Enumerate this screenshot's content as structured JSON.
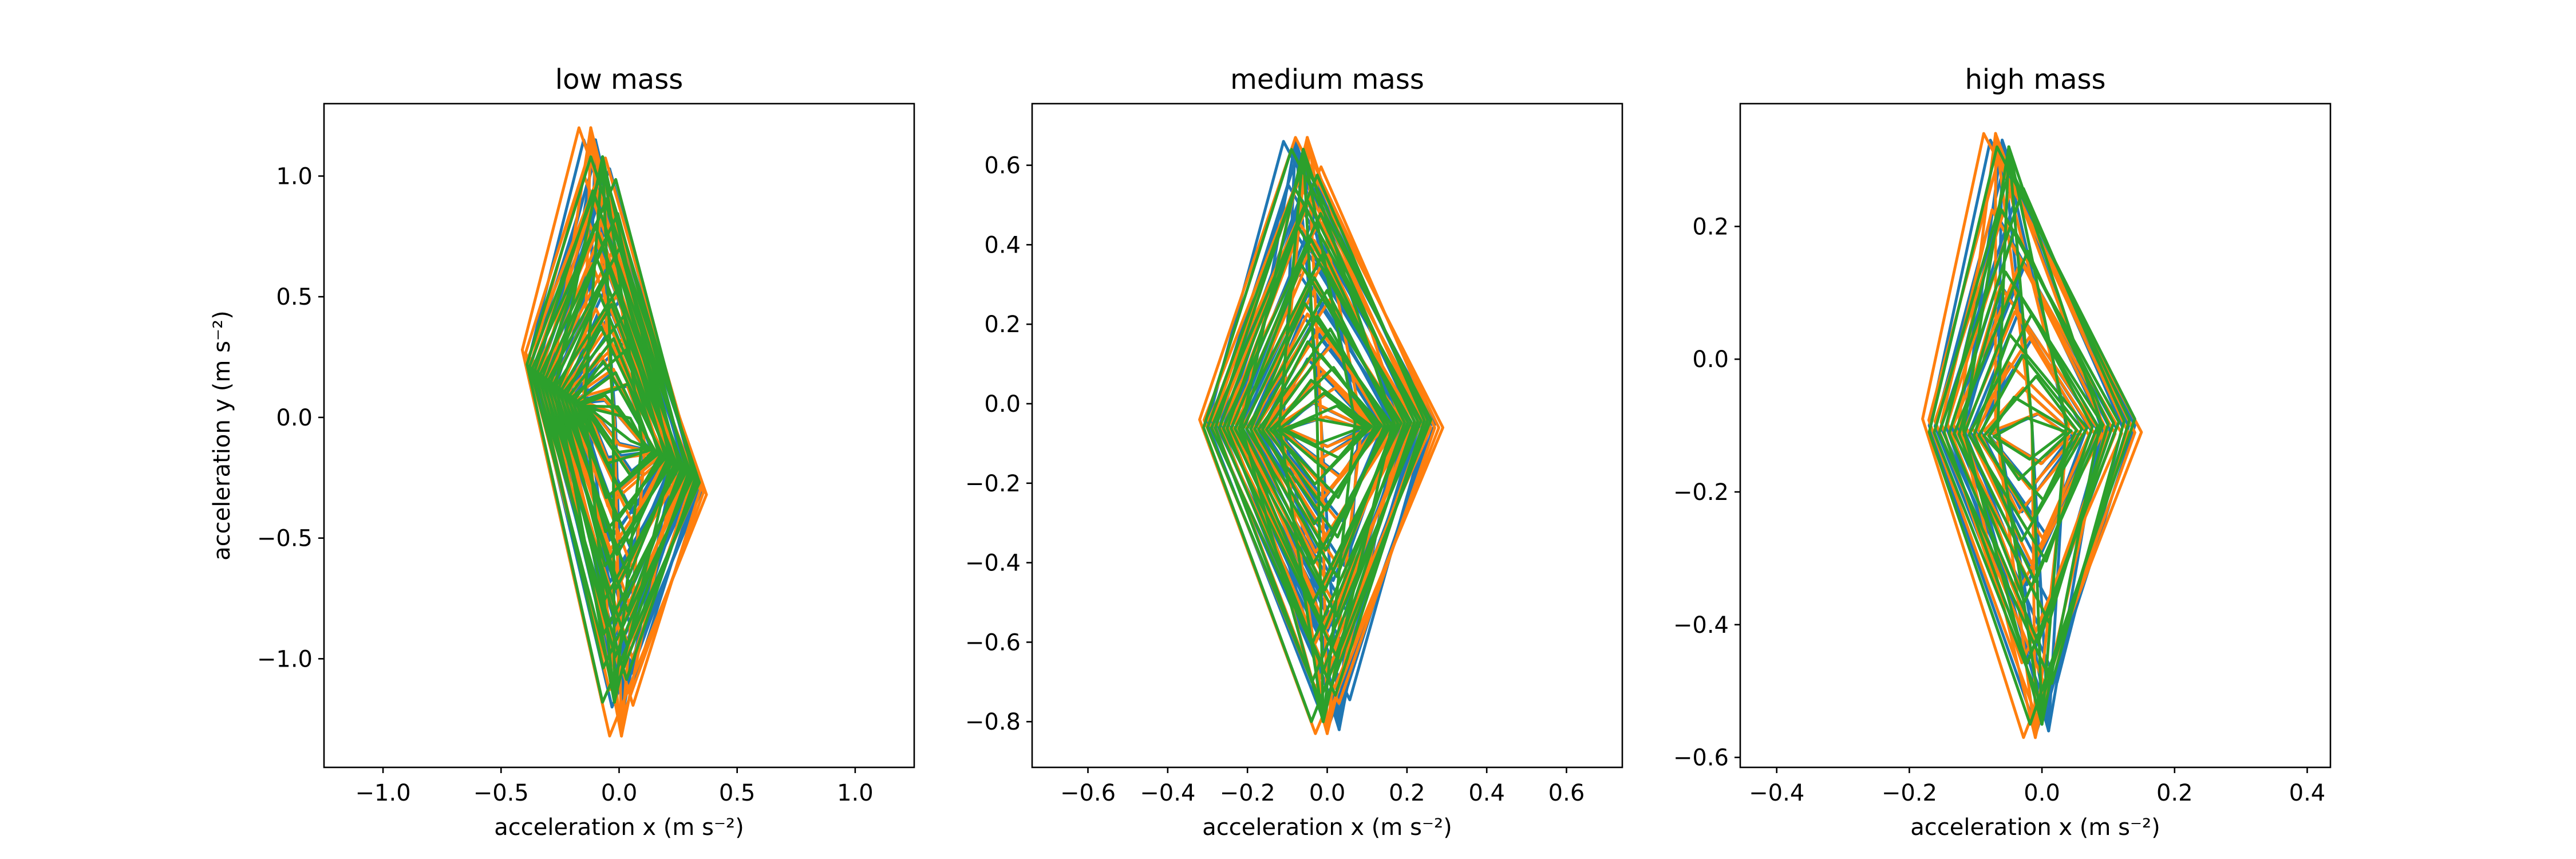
{
  "chart_data": [
    {
      "type": "line",
      "title": "low mass",
      "xlabel": "acceleration x (m s⁻²)",
      "ylabel": "acceleration y (m s⁻²)",
      "xlim": [
        -1.25,
        1.25
      ],
      "ylim": [
        -1.45,
        1.3
      ],
      "xticks": [
        -1.0,
        -0.5,
        0.0,
        0.5,
        1.0
      ],
      "xtick_labels": [
        "−1.0",
        "−0.5",
        "0.0",
        "0.5",
        "1.0"
      ],
      "yticks": [
        -1.0,
        -0.5,
        0.0,
        0.5,
        1.0
      ],
      "ytick_labels": [
        "−1.0",
        "−0.5",
        "0.0",
        "0.5",
        "1.0"
      ],
      "grid": false,
      "series": [
        {
          "color": "#1f77b4",
          "top": [
            -0.1,
            1.15
          ],
          "bottom": [
            0.02,
            -1.2
          ],
          "left": [
            -0.38,
            0.25
          ],
          "right": [
            0.35,
            -0.3
          ],
          "center": [
            0.0,
            -0.05
          ],
          "loops": 20
        },
        {
          "color": "#ff7f0e",
          "top": [
            -0.12,
            1.2
          ],
          "bottom": [
            0.01,
            -1.32
          ],
          "left": [
            -0.41,
            0.28
          ],
          "right": [
            0.37,
            -0.32
          ],
          "center": [
            0.0,
            -0.05
          ],
          "loops": 20
        },
        {
          "color": "#2ca02c",
          "top": [
            -0.07,
            1.08
          ],
          "bottom": [
            -0.02,
            -1.18
          ],
          "left": [
            -0.39,
            0.22
          ],
          "right": [
            0.34,
            -0.27
          ],
          "center": [
            0.0,
            -0.05
          ],
          "loops": 24
        }
      ]
    },
    {
      "type": "line",
      "title": "medium mass",
      "xlabel": "acceleration x (m s⁻²)",
      "ylabel": "",
      "xlim": [
        -0.74,
        0.74
      ],
      "ylim": [
        -0.915,
        0.755
      ],
      "xticks": [
        -0.6,
        -0.4,
        -0.2,
        0.0,
        0.2,
        0.4,
        0.6
      ],
      "xtick_labels": [
        "−0.6",
        "−0.4",
        "−0.2",
        "0.0",
        "0.2",
        "0.4",
        "0.6"
      ],
      "yticks": [
        -0.8,
        -0.6,
        -0.4,
        -0.2,
        0.0,
        0.2,
        0.4,
        0.6
      ],
      "ytick_labels": [
        "−0.8",
        "−0.6",
        "−0.4",
        "−0.2",
        "0.0",
        "0.2",
        "0.4",
        "0.6"
      ],
      "grid": false,
      "series": [
        {
          "color": "#1f77b4",
          "top": [
            -0.08,
            0.66
          ],
          "bottom": [
            0.03,
            -0.82
          ],
          "left": [
            -0.3,
            -0.05
          ],
          "right": [
            0.27,
            -0.05
          ],
          "center": [
            0.0,
            -0.07
          ],
          "loops": 20
        },
        {
          "color": "#ff7f0e",
          "top": [
            -0.05,
            0.67
          ],
          "bottom": [
            0.0,
            -0.83
          ],
          "left": [
            -0.32,
            -0.04
          ],
          "right": [
            0.29,
            -0.06
          ],
          "center": [
            0.0,
            -0.07
          ],
          "loops": 20
        },
        {
          "color": "#2ca02c",
          "top": [
            -0.06,
            0.64
          ],
          "bottom": [
            -0.01,
            -0.8
          ],
          "left": [
            -0.31,
            -0.06
          ],
          "right": [
            0.26,
            -0.04
          ],
          "center": [
            0.0,
            -0.07
          ],
          "loops": 22
        }
      ]
    },
    {
      "type": "line",
      "title": "high mass",
      "xlabel": "acceleration x (m s⁻²)",
      "ylabel": "",
      "xlim": [
        -0.455,
        0.435
      ],
      "ylim": [
        -0.615,
        0.385
      ],
      "xticks": [
        -0.4,
        -0.2,
        0.0,
        0.2,
        0.4
      ],
      "xtick_labels": [
        "−0.4",
        "−0.2",
        "0.0",
        "0.2",
        "0.4"
      ],
      "yticks": [
        -0.6,
        -0.4,
        -0.2,
        0.0,
        0.2
      ],
      "ytick_labels": [
        "−0.6",
        "−0.4",
        "−0.2",
        "0.0",
        "0.2"
      ],
      "grid": false,
      "series": [
        {
          "color": "#1f77b4",
          "top": [
            -0.06,
            0.33
          ],
          "bottom": [
            0.01,
            -0.56
          ],
          "left": [
            -0.17,
            -0.1
          ],
          "right": [
            0.14,
            -0.1
          ],
          "center": [
            -0.02,
            -0.12
          ],
          "loops": 12
        },
        {
          "color": "#ff7f0e",
          "top": [
            -0.07,
            0.34
          ],
          "bottom": [
            -0.01,
            -0.57
          ],
          "left": [
            -0.18,
            -0.09
          ],
          "right": [
            0.15,
            -0.11
          ],
          "center": [
            -0.02,
            -0.12
          ],
          "loops": 12
        },
        {
          "color": "#2ca02c",
          "top": [
            -0.05,
            0.32
          ],
          "bottom": [
            0.0,
            -0.55
          ],
          "left": [
            -0.17,
            -0.11
          ],
          "right": [
            0.14,
            -0.09
          ],
          "center": [
            -0.02,
            -0.12
          ],
          "loops": 14
        }
      ]
    }
  ]
}
